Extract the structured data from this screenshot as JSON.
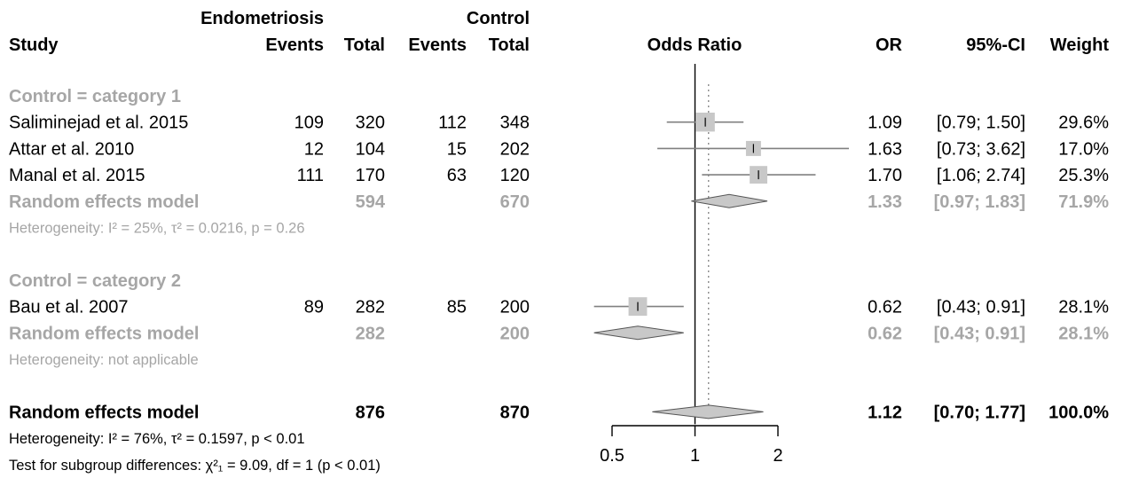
{
  "header": {
    "group1": "Endometriosis",
    "group2": "Control",
    "study": "Study",
    "events1": "Events",
    "total1": "Total",
    "events2": "Events",
    "total2": "Total",
    "plot": "Odds Ratio",
    "or": "OR",
    "ci": "95%-CI",
    "weight": "Weight"
  },
  "chart_data": {
    "type": "forest",
    "x_scale": "log",
    "xlim": [
      0.5,
      2.2
    ],
    "x_ticks": [
      "0.5",
      "1",
      "2"
    ],
    "null_line": 1,
    "overall_line": 1.12,
    "rows": [
      {
        "kind": "subgroup",
        "label": "Control = category 1"
      },
      {
        "kind": "study",
        "label": "Saliminejad et al. 2015",
        "e1": "109",
        "n1": "320",
        "e2": "112",
        "n2": "348",
        "or": 1.09,
        "lo": 0.79,
        "hi": 1.5,
        "w": 29.6,
        "or_text": "1.09",
        "ci_text": "[0.79; 1.50]",
        "w_text": "29.6%"
      },
      {
        "kind": "study",
        "label": "Attar et al. 2010",
        "e1": "12",
        "n1": "104",
        "e2": "15",
        "n2": "202",
        "or": 1.63,
        "lo": 0.73,
        "hi": 3.62,
        "w": 17.0,
        "or_text": "1.63",
        "ci_text": "[0.73; 3.62]",
        "w_text": "17.0%"
      },
      {
        "kind": "study",
        "label": "Manal et al. 2015",
        "e1": "111",
        "n1": "170",
        "e2": "63",
        "n2": "120",
        "or": 1.7,
        "lo": 1.06,
        "hi": 2.74,
        "w": 25.3,
        "or_text": "1.70",
        "ci_text": "[1.06; 2.74]",
        "w_text": "25.3%"
      },
      {
        "kind": "subtotal",
        "label": "Random effects model",
        "n1": "594",
        "n2": "670",
        "or": 1.33,
        "lo": 0.97,
        "hi": 1.83,
        "or_text": "1.33",
        "ci_text": "[0.97; 1.83]",
        "w_text": "71.9%"
      },
      {
        "kind": "het",
        "label": "Heterogeneity: I² = 25%, τ² = 0.0216, p = 0.26"
      },
      {
        "kind": "spacer"
      },
      {
        "kind": "subgroup",
        "label": "Control = category 2"
      },
      {
        "kind": "study",
        "label": "Bau et al. 2007",
        "e1": "89",
        "n1": "282",
        "e2": "85",
        "n2": "200",
        "or": 0.62,
        "lo": 0.43,
        "hi": 0.91,
        "w": 28.1,
        "or_text": "0.62",
        "ci_text": "[0.43; 0.91]",
        "w_text": "28.1%"
      },
      {
        "kind": "subtotal",
        "label": "Random effects model",
        "n1": "282",
        "n2": "200",
        "or": 0.62,
        "lo": 0.43,
        "hi": 0.91,
        "or_text": "0.62",
        "ci_text": "[0.43; 0.91]",
        "w_text": "28.1%"
      },
      {
        "kind": "het",
        "label": "Heterogeneity: not applicable"
      },
      {
        "kind": "spacer"
      },
      {
        "kind": "overall",
        "label": "Random effects model",
        "n1": "876",
        "n2": "870",
        "or": 1.12,
        "lo": 0.7,
        "hi": 1.77,
        "or_text": "1.12",
        "ci_text": "[0.70; 1.77]",
        "w_text": "100.0%"
      },
      {
        "kind": "het_overall",
        "label": "Heterogeneity: I² = 76%, τ² = 0.1597, p < 0.01"
      },
      {
        "kind": "subgroup_test",
        "label": "Test for subgroup differences: χ²₁ = 9.09, df = 1 (p < 0.01)"
      }
    ]
  }
}
